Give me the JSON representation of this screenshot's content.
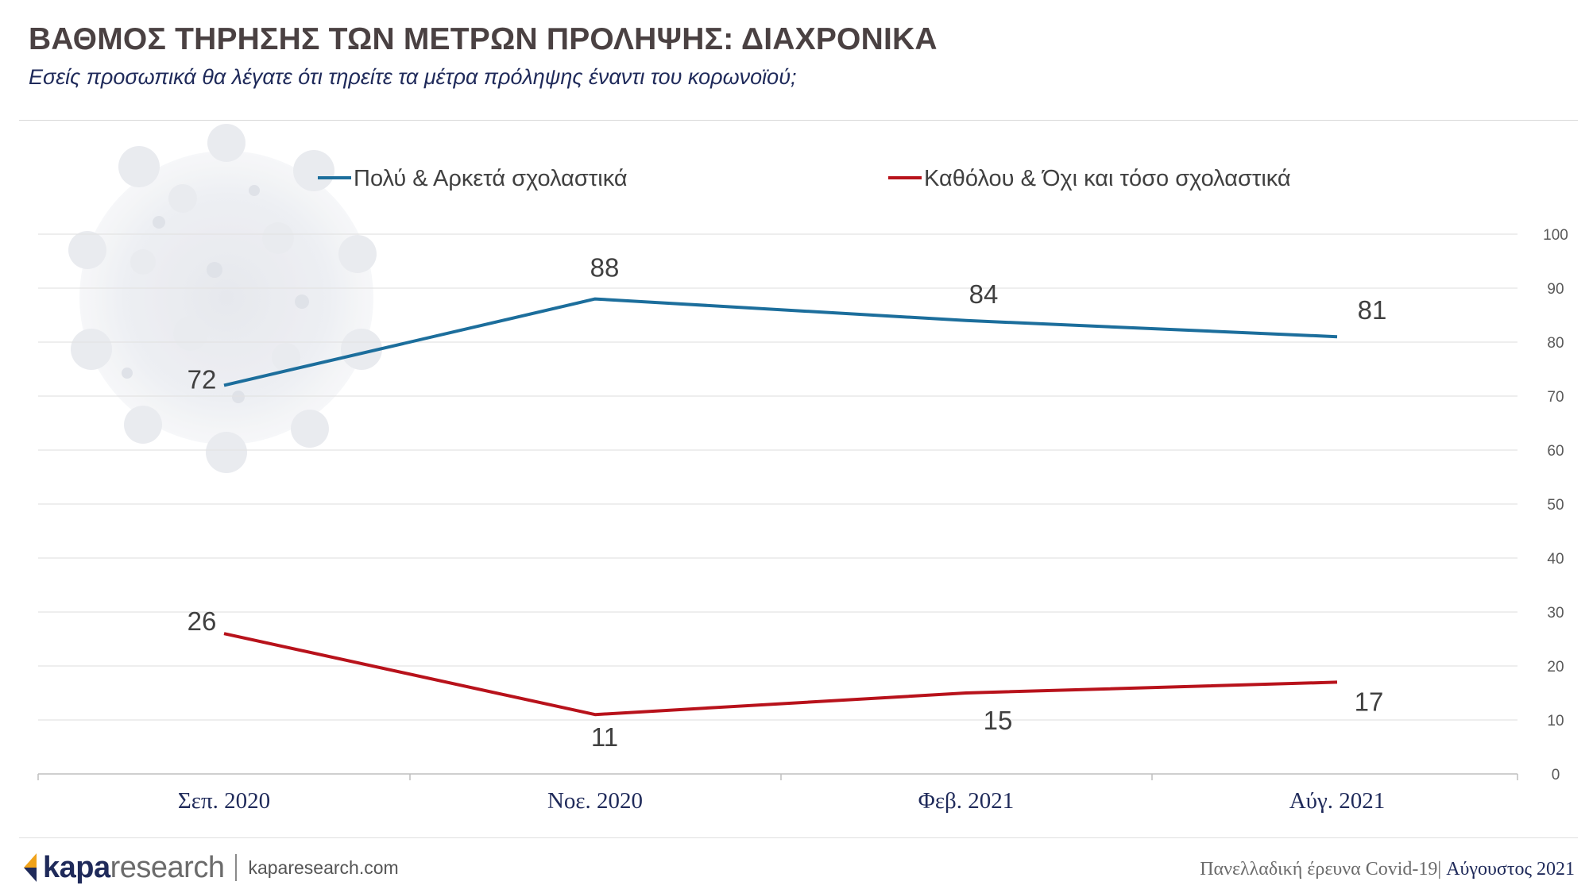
{
  "header": {
    "title": "ΒΑΘΜΟΣ ΤΗΡΗΣΗΣ ΤΩΝ ΜΕΤΡΩΝ ΠΡΟΛΗΨΗΣ: ΔΙΑΧΡΟΝΙΚΑ",
    "subtitle": "Εσείς προσωπικά θα λέγατε ότι τηρείτε τα μέτρα πρόληψης έναντι του κορωνοϊού;"
  },
  "chart_data": {
    "type": "line",
    "categories": [
      "Σεπ. 2020",
      "Νοε. 2020",
      "Φεβ. 2021",
      "Αύγ. 2021"
    ],
    "series": [
      {
        "name": "Πολύ & Αρκετά σχολαστικά",
        "values": [
          72,
          88,
          84,
          81
        ],
        "color": "#1c6e9c"
      },
      {
        "name": "Καθόλου & Όχι και τόσο σχολαστικά",
        "values": [
          26,
          11,
          15,
          17
        ],
        "color": "#b8121b"
      }
    ],
    "ylim": [
      0,
      100
    ],
    "yticks": [
      0,
      10,
      20,
      30,
      40,
      50,
      60,
      70,
      80,
      90,
      100
    ],
    "y_axis_position": "right",
    "grid": true,
    "legend_position": "top",
    "data_labels": true
  },
  "footer": {
    "logo_kapa": "kapa",
    "logo_research": "research",
    "logo_url": "kaparesearch.com",
    "survey": "Πανελλαδική έρευνα Covid-19",
    "separator": "| ",
    "date": "Αύγουστος 2021"
  },
  "colors": {
    "gridline": "#e3e3e3",
    "axis": "#bfbfbf",
    "tick_text": "#595959",
    "category_text": "#1f2a5a",
    "value_text": "#404040"
  }
}
